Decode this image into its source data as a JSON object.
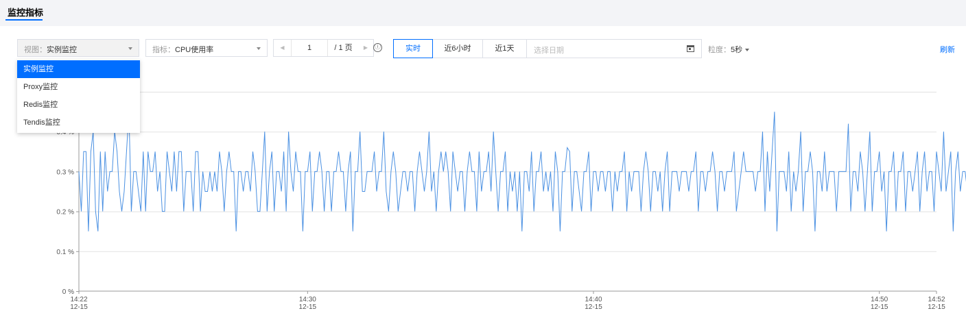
{
  "tabs": [
    {
      "label": "监控指标",
      "active": true
    }
  ],
  "toolbar": {
    "view_label": "视图：",
    "view_value": "实例监控",
    "metric_label": "指标：",
    "metric_value": "CPU使用率",
    "pager": {
      "prev": "◀",
      "page": "1",
      "total": "/ 1 页",
      "next": "▶"
    },
    "info_icon": "ⓘ",
    "range_buttons": [
      {
        "label": "实时",
        "active": true
      },
      {
        "label": "近6小时",
        "active": false
      },
      {
        "label": "近1天",
        "active": false
      }
    ],
    "date_placeholder": "选择日期",
    "granularity_label": "粒度：",
    "granularity_value": "5秒",
    "refresh_label": "刷新"
  },
  "view_dropdown": {
    "options": [
      {
        "label": "实例监控",
        "selected": true
      },
      {
        "label": "Proxy监控",
        "selected": false
      },
      {
        "label": "Redis监控",
        "selected": false
      },
      {
        "label": "Tendis监控",
        "selected": false
      }
    ]
  },
  "colors": {
    "accent": "#006eff",
    "series": "#4a90e2",
    "grid": "#e2e2e2"
  },
  "chart_data": {
    "type": "line",
    "y_ticks": [
      "0 %",
      "0.1 %",
      "0.2 %",
      "0.3 %",
      "0.4 %"
    ],
    "ylim": [
      0,
      0.5
    ],
    "y_unit": "%",
    "x_range_minutes": [
      0,
      30
    ],
    "x_ticks": [
      {
        "minute": 0,
        "time": "14:22",
        "date": "12-15"
      },
      {
        "minute": 8,
        "time": "14:30",
        "date": "12-15"
      },
      {
        "minute": 18,
        "time": "14:40",
        "date": "12-15"
      },
      {
        "minute": 28,
        "time": "14:50",
        "date": "12-15"
      },
      {
        "minute": 30,
        "time": "14:52",
        "date": "12-15"
      }
    ],
    "series": [
      {
        "interval_seconds": 5,
        "values": [
          0.3,
          0.2,
          0.35,
          0.35,
          0.15,
          0.35,
          0.4,
          0.2,
          0.15,
          0.35,
          0.2,
          0.35,
          0.25,
          0.3,
          0.3,
          0.4,
          0.35,
          0.25,
          0.2,
          0.25,
          0.35,
          0.45,
          0.2,
          0.3,
          0.3,
          0.25,
          0.2,
          0.35,
          0.2,
          0.35,
          0.3,
          0.3,
          0.35,
          0.25,
          0.3,
          0.2,
          0.2,
          0.35,
          0.3,
          0.25,
          0.35,
          0.25,
          0.35,
          0.35,
          0.2,
          0.3,
          0.3,
          0.3,
          0.2,
          0.35,
          0.35,
          0.2,
          0.3,
          0.25,
          0.25,
          0.3,
          0.25,
          0.3,
          0.25,
          0.35,
          0.3,
          0.2,
          0.3,
          0.35,
          0.3,
          0.3,
          0.15,
          0.3,
          0.3,
          0.25,
          0.3,
          0.3,
          0.25,
          0.35,
          0.3,
          0.2,
          0.2,
          0.3,
          0.4,
          0.2,
          0.3,
          0.35,
          0.2,
          0.3,
          0.3,
          0.25,
          0.35,
          0.2,
          0.4,
          0.3,
          0.25,
          0.35,
          0.3,
          0.3,
          0.15,
          0.3,
          0.3,
          0.35,
          0.2,
          0.3,
          0.3,
          0.35,
          0.3,
          0.2,
          0.3,
          0.3,
          0.2,
          0.3,
          0.3,
          0.35,
          0.3,
          0.3,
          0.2,
          0.3,
          0.35,
          0.15,
          0.3,
          0.3,
          0.4,
          0.25,
          0.25,
          0.3,
          0.3,
          0.3,
          0.35,
          0.25,
          0.3,
          0.3,
          0.4,
          0.25,
          0.2,
          0.3,
          0.35,
          0.3,
          0.2,
          0.25,
          0.3,
          0.3,
          0.25,
          0.3,
          0.3,
          0.2,
          0.3,
          0.35,
          0.3,
          0.25,
          0.3,
          0.4,
          0.25,
          0.3,
          0.2,
          0.3,
          0.35,
          0.3,
          0.35,
          0.3,
          0.2,
          0.35,
          0.3,
          0.25,
          0.3,
          0.3,
          0.2,
          0.3,
          0.35,
          0.3,
          0.3,
          0.2,
          0.35,
          0.25,
          0.3,
          0.3,
          0.35,
          0.25,
          0.4,
          0.3,
          0.2,
          0.3,
          0.3,
          0.35,
          0.2,
          0.3,
          0.25,
          0.3,
          0.2,
          0.3,
          0.15,
          0.3,
          0.3,
          0.25,
          0.35,
          0.2,
          0.3,
          0.3,
          0.35,
          0.25,
          0.3,
          0.25,
          0.3,
          0.2,
          0.35,
          0.3,
          0.15,
          0.3,
          0.3,
          0.36,
          0.35,
          0.2,
          0.3,
          0.3,
          0.25,
          0.2,
          0.3,
          0.3,
          0.35,
          0.2,
          0.3,
          0.3,
          0.25,
          0.3,
          0.3,
          0.25,
          0.3,
          0.3,
          0.2,
          0.3,
          0.25,
          0.3,
          0.3,
          0.35,
          0.2,
          0.3,
          0.25,
          0.3,
          0.3,
          0.3,
          0.2,
          0.3,
          0.35,
          0.3,
          0.2,
          0.3,
          0.3,
          0.25,
          0.3,
          0.2,
          0.3,
          0.35,
          0.2,
          0.3,
          0.3,
          0.3,
          0.25,
          0.3,
          0.3,
          0.3,
          0.25,
          0.3,
          0.3,
          0.35,
          0.2,
          0.3,
          0.3,
          0.25,
          0.3,
          0.3,
          0.35,
          0.3,
          0.2,
          0.3,
          0.3,
          0.25,
          0.3,
          0.3,
          0.3,
          0.35,
          0.2,
          0.25,
          0.3,
          0.35,
          0.3,
          0.3,
          0.3,
          0.3,
          0.25,
          0.3,
          0.3,
          0.4,
          0.2,
          0.35,
          0.25,
          0.35,
          0.45,
          0.15,
          0.3,
          0.3,
          0.3,
          0.25,
          0.35,
          0.2,
          0.3,
          0.25,
          0.3,
          0.4,
          0.2,
          0.3,
          0.3,
          0.35,
          0.3,
          0.15,
          0.3,
          0.3,
          0.25,
          0.35,
          0.25,
          0.3,
          0.3,
          0.3,
          0.2,
          0.3,
          0.3,
          0.3,
          0.3,
          0.42,
          0.2,
          0.3,
          0.3,
          0.25,
          0.35,
          0.3,
          0.2,
          0.3,
          0.4,
          0.2,
          0.3,
          0.3,
          0.35,
          0.25,
          0.3,
          0.15,
          0.3,
          0.3,
          0.35,
          0.2,
          0.3,
          0.3,
          0.35,
          0.2,
          0.3,
          0.3,
          0.25,
          0.3,
          0.35,
          0.2,
          0.3,
          0.35,
          0.25,
          0.3,
          0.3,
          0.2,
          0.35,
          0.3,
          0.25,
          0.4,
          0.25,
          0.3,
          0.35,
          0.15,
          0.3,
          0.35,
          0.25,
          0.3,
          0.3,
          0.25,
          0.35,
          0.2,
          0.3,
          0.3,
          0.35,
          0.2,
          0.4,
          0.3,
          0.25,
          0.3,
          0.35,
          0.2,
          0.4,
          0.25,
          0.3,
          0.35,
          0.4,
          0.3,
          0.2,
          0.3,
          0.35,
          0.15,
          0.4,
          0.3,
          0.25,
          0.3,
          0.35,
          0.2,
          0.3,
          0.3,
          0.35,
          0.15,
          0.3,
          0.3,
          0.35,
          0.45,
          0.2,
          0.35,
          0.3,
          0.3,
          0.4,
          0.25,
          0.3,
          0.35,
          0.2,
          0.3,
          0.25,
          0.35,
          0.3,
          0.25,
          0.3,
          0.35,
          0.15,
          0.3,
          0.35,
          0.3,
          0.2,
          0.3,
          0.25,
          0.3,
          0.3,
          0.25,
          0.25,
          0.25,
          0.25,
          0.3,
          0.3,
          0.3,
          0.25,
          0.3,
          0.3,
          0.25,
          0.3,
          0.3,
          0.25,
          0.3,
          0.3,
          0.3,
          0.3,
          0.25,
          0.3,
          0.3,
          0.35,
          0.3,
          0.25,
          0.35,
          0.42,
          0.35,
          0.15,
          0.3,
          0.35,
          0.3,
          0.2,
          0.3,
          0.35,
          0.25,
          0.35,
          0.15,
          0.3,
          0.35,
          0.3,
          0.25,
          0.3
        ]
      }
    ]
  }
}
